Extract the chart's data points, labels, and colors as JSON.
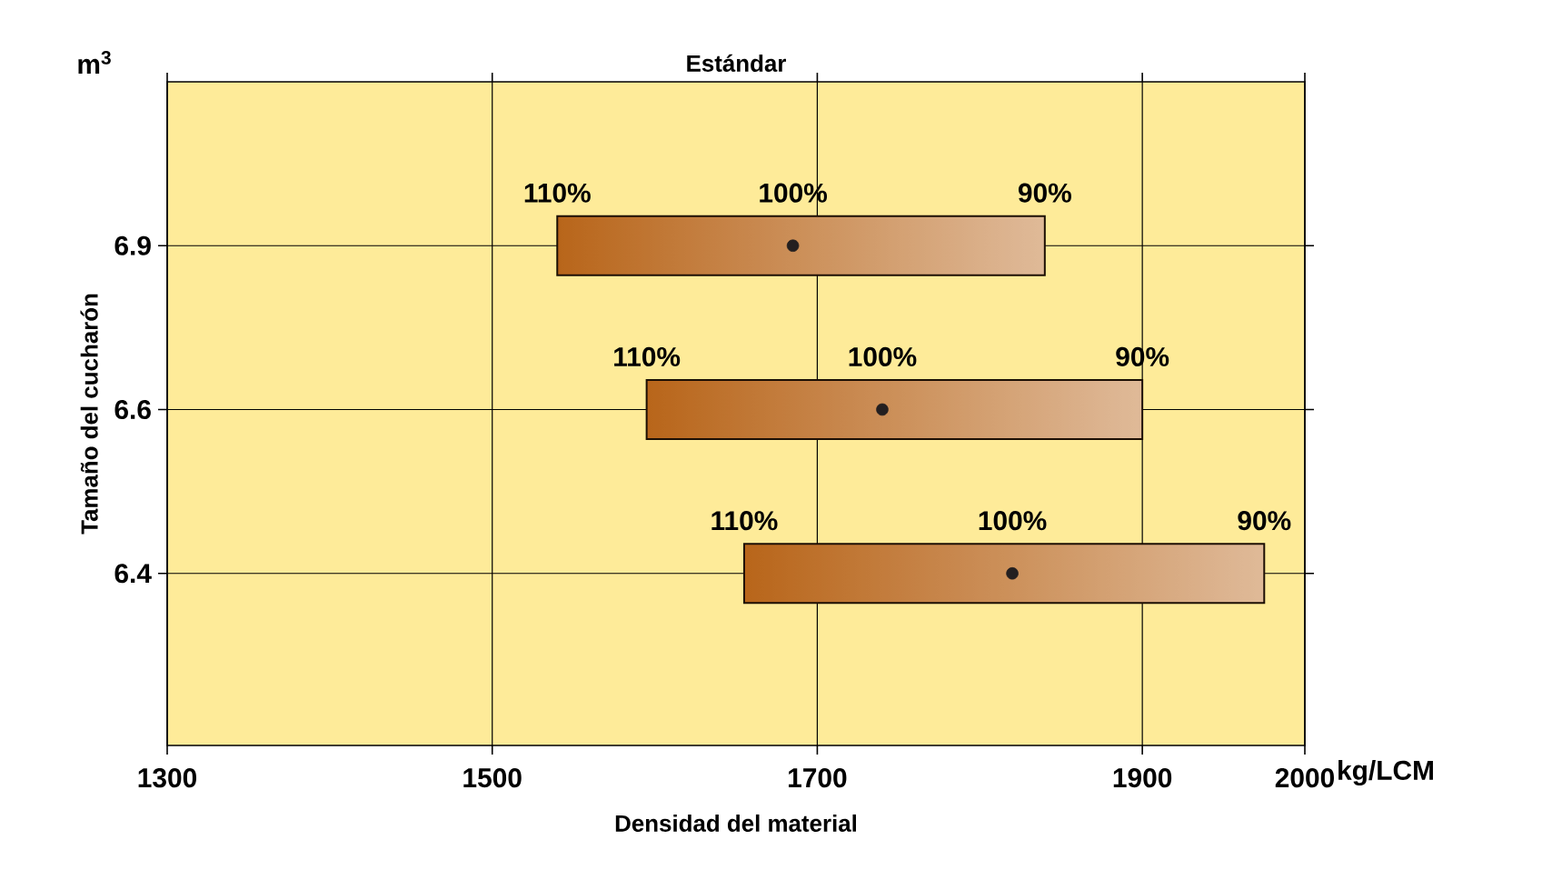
{
  "chart_data": {
    "type": "bar",
    "title": "Estándar",
    "xlabel": "Densidad del material",
    "ylabel": "Tamaño del cucharón",
    "orientation": "horizontal",
    "categories": [
      "6.9",
      "6.6",
      "6.4"
    ],
    "series": [
      {
        "color": "#b8651a",
        "base": [
          1540,
          1595,
          1655
        ],
        "values": [
          300,
          305,
          320
        ]
      },
      {
        "type": "scatter",
        "color": "#231f20",
        "values": [
          1685,
          1740,
          1820
        ]
      }
    ],
    "marker": "circle",
    "xlim": [
      1300,
      2000
    ],
    "xticks": [
      1300,
      1500,
      1700,
      1900,
      2000
    ],
    "grid": true,
    "annotations": [
      "m$^{3}$",
      "kg/LCM",
      {
        "text": "110%",
        "x": 1540,
        "y": "6.9"
      },
      {
        "text": "100%",
        "x": 1685,
        "y": "6.9"
      },
      {
        "text": "90%",
        "x": 1840,
        "y": "6.9"
      },
      {
        "text": "110%",
        "x": 1595,
        "y": "6.6"
      },
      {
        "text": "100%",
        "x": 1740,
        "y": "6.6"
      },
      {
        "text": "90%",
        "x": 1900,
        "y": "6.6"
      },
      {
        "text": "110%",
        "x": 1655,
        "y": "6.4"
      },
      {
        "text": "100%",
        "x": 1820,
        "y": "6.4"
      },
      {
        "text": "90%",
        "x": 1975,
        "y": "6.4"
      }
    ]
  }
}
